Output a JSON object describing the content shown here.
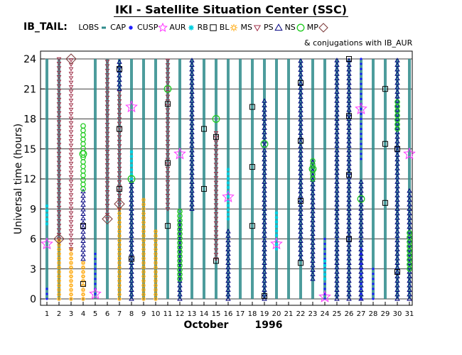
{
  "title": "IKI - Satellite Situation Center (SSC)",
  "dataset_label": "IB_TAIL:",
  "conjunction_note": "& conjugations with IB_AUR",
  "legend": [
    {
      "key": "LOBS",
      "symbol": "lobs-tick",
      "color": "#2e8b8b"
    },
    {
      "key": "CAP",
      "symbol": "filled-circle",
      "color": "#1f1fff"
    },
    {
      "key": "CUSP",
      "symbol": "star",
      "color": "#ff33ff"
    },
    {
      "key": "AUR",
      "symbol": "asterisk",
      "color": "#00cfe0"
    },
    {
      "key": "RB",
      "symbol": "square",
      "color": "#000000"
    },
    {
      "key": "BL",
      "symbol": "sun",
      "color": "#ffa500"
    },
    {
      "key": "MS",
      "symbol": "down-triangle",
      "color": "#a0304a"
    },
    {
      "key": "PS",
      "symbol": "triangle",
      "color": "#000080"
    },
    {
      "key": "NS",
      "symbol": "circle",
      "color": "#22cc22"
    },
    {
      "key": "MP",
      "symbol": "diamond",
      "color": "#804040"
    }
  ],
  "chart_data": {
    "type": "scatter",
    "title": "IKI - Satellite Situation Center (SSC)",
    "xlabel_month": "October",
    "xlabel_year": "1996",
    "ylabel": "Universal time (hours)",
    "x": [
      1,
      2,
      3,
      4,
      5,
      6,
      7,
      8,
      9,
      10,
      11,
      12,
      13,
      14,
      15,
      16,
      17,
      18,
      19,
      20,
      21,
      22,
      23,
      24,
      25,
      26,
      27,
      28,
      29,
      30,
      31
    ],
    "ylim": [
      0,
      24
    ],
    "yticks": [
      0,
      3,
      6,
      9,
      12,
      15,
      18,
      21,
      24
    ],
    "grid": "horizontal",
    "lobs_days": [
      1,
      2,
      5,
      6,
      7,
      8,
      9,
      10,
      11,
      12,
      13,
      14,
      15,
      16,
      17,
      18,
      19,
      20,
      21,
      22,
      23,
      24,
      25,
      26,
      27,
      28,
      29,
      30,
      31
    ],
    "segments": [
      {
        "day": 1,
        "type": "LOBS",
        "from": 0,
        "to": 24
      },
      {
        "day": 1,
        "type": "AUR",
        "from": 7.5,
        "to": 9.5
      },
      {
        "day": 1,
        "type": "CAP",
        "from": 0,
        "to": 1
      },
      {
        "day": 2,
        "type": "BL",
        "from": 0,
        "to": 6
      },
      {
        "day": 2,
        "type": "MS",
        "from": 6,
        "to": 24
      },
      {
        "day": 3,
        "type": "BL",
        "from": 0,
        "to": 5
      },
      {
        "day": 3,
        "type": "MS",
        "from": 5,
        "to": 24
      },
      {
        "day": 4,
        "type": "BL",
        "from": 0,
        "to": 4
      },
      {
        "day": 4,
        "type": "PS",
        "from": 4,
        "to": 11
      },
      {
        "day": 4,
        "type": "NS",
        "from": 11,
        "to": 17.5
      },
      {
        "day": 5,
        "type": "LOBS",
        "from": 0,
        "to": 24
      },
      {
        "day": 5,
        "type": "CAP",
        "from": 0.5,
        "to": 4.5
      },
      {
        "day": 6,
        "type": "LOBS",
        "from": 0,
        "to": 8
      },
      {
        "day": 6,
        "type": "MS",
        "from": 8,
        "to": 24
      },
      {
        "day": 7,
        "type": "BL",
        "from": 0,
        "to": 9
      },
      {
        "day": 7,
        "type": "MS",
        "from": 9,
        "to": 21
      },
      {
        "day": 7,
        "type": "PS",
        "from": 21,
        "to": 24
      },
      {
        "day": 8,
        "type": "PS",
        "from": 0,
        "to": 12
      },
      {
        "day": 8,
        "type": "AUR",
        "from": 12,
        "to": 15
      },
      {
        "day": 9,
        "type": "BL",
        "from": 0,
        "to": 10
      },
      {
        "day": 10,
        "type": "BL",
        "from": 0,
        "to": 7
      },
      {
        "day": 10,
        "type": "LOBS",
        "from": 7,
        "to": 24
      },
      {
        "day": 11,
        "type": "MS",
        "from": 9,
        "to": 24
      },
      {
        "day": 12,
        "type": "PS",
        "from": 0,
        "to": 8
      },
      {
        "day": 12,
        "type": "NS",
        "from": 2,
        "to": 9
      },
      {
        "day": 13,
        "type": "PS",
        "from": 9,
        "to": 24
      },
      {
        "day": 15,
        "type": "MS",
        "from": 4,
        "to": 17
      },
      {
        "day": 16,
        "type": "PS",
        "from": 0,
        "to": 7
      },
      {
        "day": 16,
        "type": "AUR",
        "from": 8,
        "to": 13
      },
      {
        "day": 19,
        "type": "PS",
        "from": 0,
        "to": 20
      },
      {
        "day": 20,
        "type": "AUR",
        "from": 5,
        "to": 9
      },
      {
        "day": 22,
        "type": "PS",
        "from": 4,
        "to": 24
      },
      {
        "day": 23,
        "type": "PS",
        "from": 2,
        "to": 14
      },
      {
        "day": 23,
        "type": "NS",
        "from": 12,
        "to": 14
      },
      {
        "day": 24,
        "type": "CAP",
        "from": 0,
        "to": 6
      },
      {
        "day": 24,
        "type": "AUR",
        "from": 2,
        "to": 4
      },
      {
        "day": 25,
        "type": "PS",
        "from": 0,
        "to": 24
      },
      {
        "day": 26,
        "type": "PS",
        "from": 0,
        "to": 24
      },
      {
        "day": 27,
        "type": "PS",
        "from": 0,
        "to": 12
      },
      {
        "day": 27,
        "type": "CAP",
        "from": 0,
        "to": 5
      },
      {
        "day": 27,
        "type": "CAP",
        "from": 14,
        "to": 24
      },
      {
        "day": 28,
        "type": "CAP",
        "from": 0,
        "to": 3
      },
      {
        "day": 30,
        "type": "PS",
        "from": 0,
        "to": 24
      },
      {
        "day": 30,
        "type": "NS",
        "from": 17,
        "to": 20
      },
      {
        "day": 31,
        "type": "PS",
        "from": 0,
        "to": 11
      },
      {
        "day": 31,
        "type": "NS",
        "from": 3,
        "to": 7
      }
    ],
    "markers": [
      {
        "day": 1,
        "type": "CUSP",
        "hour": 5.5
      },
      {
        "day": 2,
        "type": "MP",
        "hour": 6
      },
      {
        "day": 3,
        "type": "MP",
        "hour": 24
      },
      {
        "day": 4,
        "type": "RB",
        "hour": 1.5
      },
      {
        "day": 4,
        "type": "RB",
        "hour": 7.3
      },
      {
        "day": 4,
        "type": "NS",
        "hour": 14.5
      },
      {
        "day": 5,
        "type": "CUSP",
        "hour": 0.5
      },
      {
        "day": 6,
        "type": "MP",
        "hour": 8
      },
      {
        "day": 7,
        "type": "MP",
        "hour": 9.5
      },
      {
        "day": 7,
        "type": "RB",
        "hour": 11
      },
      {
        "day": 7,
        "type": "RB",
        "hour": 17
      },
      {
        "day": 7,
        "type": "RB",
        "hour": 23
      },
      {
        "day": 8,
        "type": "CUSP",
        "hour": 19.2
      },
      {
        "day": 8,
        "type": "NS",
        "hour": 12
      },
      {
        "day": 8,
        "type": "RB",
        "hour": 4
      },
      {
        "day": 11,
        "type": "NS",
        "hour": 21
      },
      {
        "day": 11,
        "type": "RB",
        "hour": 7.3
      },
      {
        "day": 11,
        "type": "RB",
        "hour": 13.6
      },
      {
        "day": 11,
        "type": "RB",
        "hour": 19.5
      },
      {
        "day": 12,
        "type": "CUSP",
        "hour": 14.5
      },
      {
        "day": 14,
        "type": "RB",
        "hour": 11
      },
      {
        "day": 14,
        "type": "RB",
        "hour": 17
      },
      {
        "day": 15,
        "type": "NS",
        "hour": 18
      },
      {
        "day": 15,
        "type": "RB",
        "hour": 3.8
      },
      {
        "day": 15,
        "type": "RB",
        "hour": 16.2
      },
      {
        "day": 16,
        "type": "CUSP",
        "hour": 10.2
      },
      {
        "day": 18,
        "type": "RB",
        "hour": 7.3
      },
      {
        "day": 18,
        "type": "RB",
        "hour": 13.2
      },
      {
        "day": 18,
        "type": "RB",
        "hour": 19.2
      },
      {
        "day": 19,
        "type": "RB",
        "hour": 0.3
      },
      {
        "day": 19,
        "type": "NS",
        "hour": 15.5
      },
      {
        "day": 20,
        "type": "CUSP",
        "hour": 5.5
      },
      {
        "day": 22,
        "type": "RB",
        "hour": 3.6
      },
      {
        "day": 22,
        "type": "RB",
        "hour": 9.8
      },
      {
        "day": 22,
        "type": "RB",
        "hour": 15.8
      },
      {
        "day": 22,
        "type": "RB",
        "hour": 21.6
      },
      {
        "day": 23,
        "type": "NS",
        "hour": 13
      },
      {
        "day": 24,
        "type": "CUSP",
        "hour": 0.2
      },
      {
        "day": 26,
        "type": "RB",
        "hour": 6
      },
      {
        "day": 26,
        "type": "RB",
        "hour": 12.4
      },
      {
        "day": 26,
        "type": "RB",
        "hour": 18.3
      },
      {
        "day": 26,
        "type": "RB",
        "hour": 24
      },
      {
        "day": 27,
        "type": "NS",
        "hour": 10
      },
      {
        "day": 27,
        "type": "CUSP",
        "hour": 19
      },
      {
        "day": 29,
        "type": "RB",
        "hour": 9.6
      },
      {
        "day": 29,
        "type": "RB",
        "hour": 15.5
      },
      {
        "day": 29,
        "type": "RB",
        "hour": 21
      },
      {
        "day": 30,
        "type": "RB",
        "hour": 2.7
      },
      {
        "day": 30,
        "type": "RB",
        "hour": 15
      },
      {
        "day": 31,
        "type": "CUSP",
        "hour": 14.5
      }
    ]
  }
}
